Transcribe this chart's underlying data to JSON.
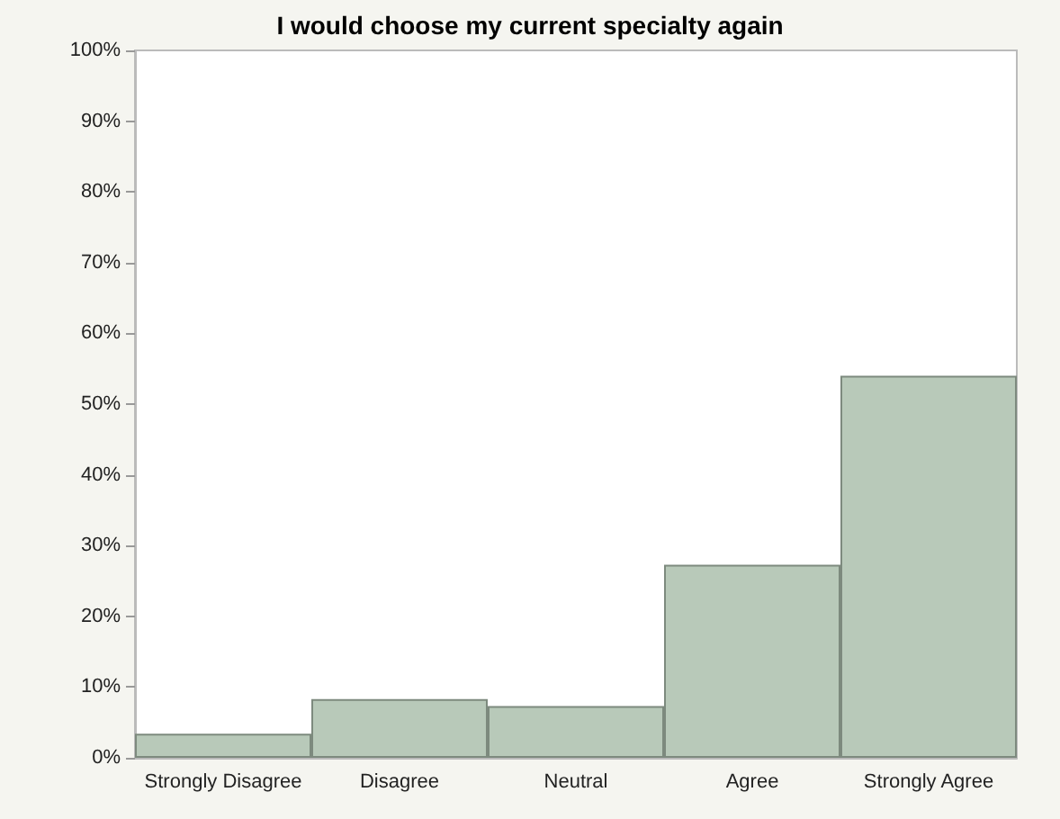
{
  "chart_data": {
    "type": "bar",
    "title": "I would choose my current specialty again",
    "categories": [
      "Strongly Disagree",
      "Disagree",
      "Neutral",
      "Agree",
      "Strongly Agree"
    ],
    "values": [
      3.4,
      8.3,
      7.3,
      27.3,
      54
    ],
    "color": "#b8c9b9",
    "ylim": [
      0,
      100
    ],
    "yticks": [
      {
        "value": 0,
        "label": "0%"
      },
      {
        "value": 10,
        "label": "10%"
      },
      {
        "value": 20,
        "label": "20%"
      },
      {
        "value": 30,
        "label": "30%"
      },
      {
        "value": 40,
        "label": "40%"
      },
      {
        "value": 50,
        "label": "50%"
      },
      {
        "value": 60,
        "label": "60%"
      },
      {
        "value": 70,
        "label": "70%"
      },
      {
        "value": 80,
        "label": "80%"
      },
      {
        "value": 90,
        "label": "90%"
      },
      {
        "value": 100,
        "label": "100%"
      }
    ],
    "grid": false
  }
}
